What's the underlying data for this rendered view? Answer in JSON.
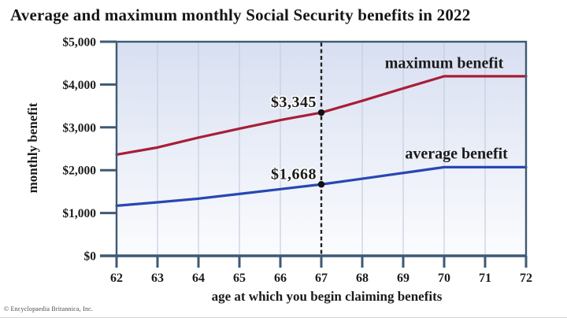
{
  "figure": {
    "copyright": "© Encyclopaedia Britannica, Inc."
  },
  "chart_data": {
    "type": "line",
    "title": "Average and maximum monthly Social Security benefits in 2022",
    "xlabel": "age at which you begin claiming benefits",
    "ylabel": "monthly benefit",
    "x": [
      62,
      63,
      64,
      65,
      66,
      67,
      68,
      69,
      70,
      71,
      72
    ],
    "x_tick_labels": [
      "62",
      "63",
      "64",
      "65",
      "66",
      "67",
      "68",
      "69",
      "70",
      "71",
      "72"
    ],
    "xlim": [
      62,
      72
    ],
    "ylim": [
      0,
      5000
    ],
    "y_ticks": [
      0,
      1000,
      2000,
      3000,
      4000,
      5000
    ],
    "y_tick_labels": [
      "$0",
      "$1,000",
      "$2,000",
      "$3,000",
      "$4,000",
      "$5,000"
    ],
    "grid": "vertical gridlines only",
    "legend_position": "inline labels above lines",
    "series": [
      {
        "name": "maximum benefit",
        "color": "#a81e38",
        "values": [
          2364,
          2530,
          2760,
          2970,
          3170,
          3345,
          3620,
          3910,
          4194,
          4194,
          4194
        ],
        "label_anchor": {
          "x": 70.0,
          "y": 4380
        }
      },
      {
        "name": "average benefit",
        "color": "#2847b2",
        "values": [
          1170,
          1250,
          1335,
          1445,
          1557,
          1668,
          1800,
          1935,
          2070,
          2070,
          2070
        ],
        "label_anchor": {
          "x": 70.3,
          "y": 2267
        }
      }
    ],
    "reference_line": {
      "x": 67,
      "style": "dashed-black"
    },
    "annotations": [
      {
        "x": 67,
        "y": 3345,
        "label": "$3,345"
      },
      {
        "x": 67,
        "y": 1668,
        "label": "$1,668"
      }
    ],
    "style": {
      "plot_bg_top": "#d8dff1",
      "plot_bg_bottom": "#fbfcfe",
      "frame_color": "#3e5a74",
      "grid_color": "#c5cedf",
      "reference_color": "#222222",
      "marker_color": "#111111",
      "text_color": "#1b1b1b"
    }
  }
}
